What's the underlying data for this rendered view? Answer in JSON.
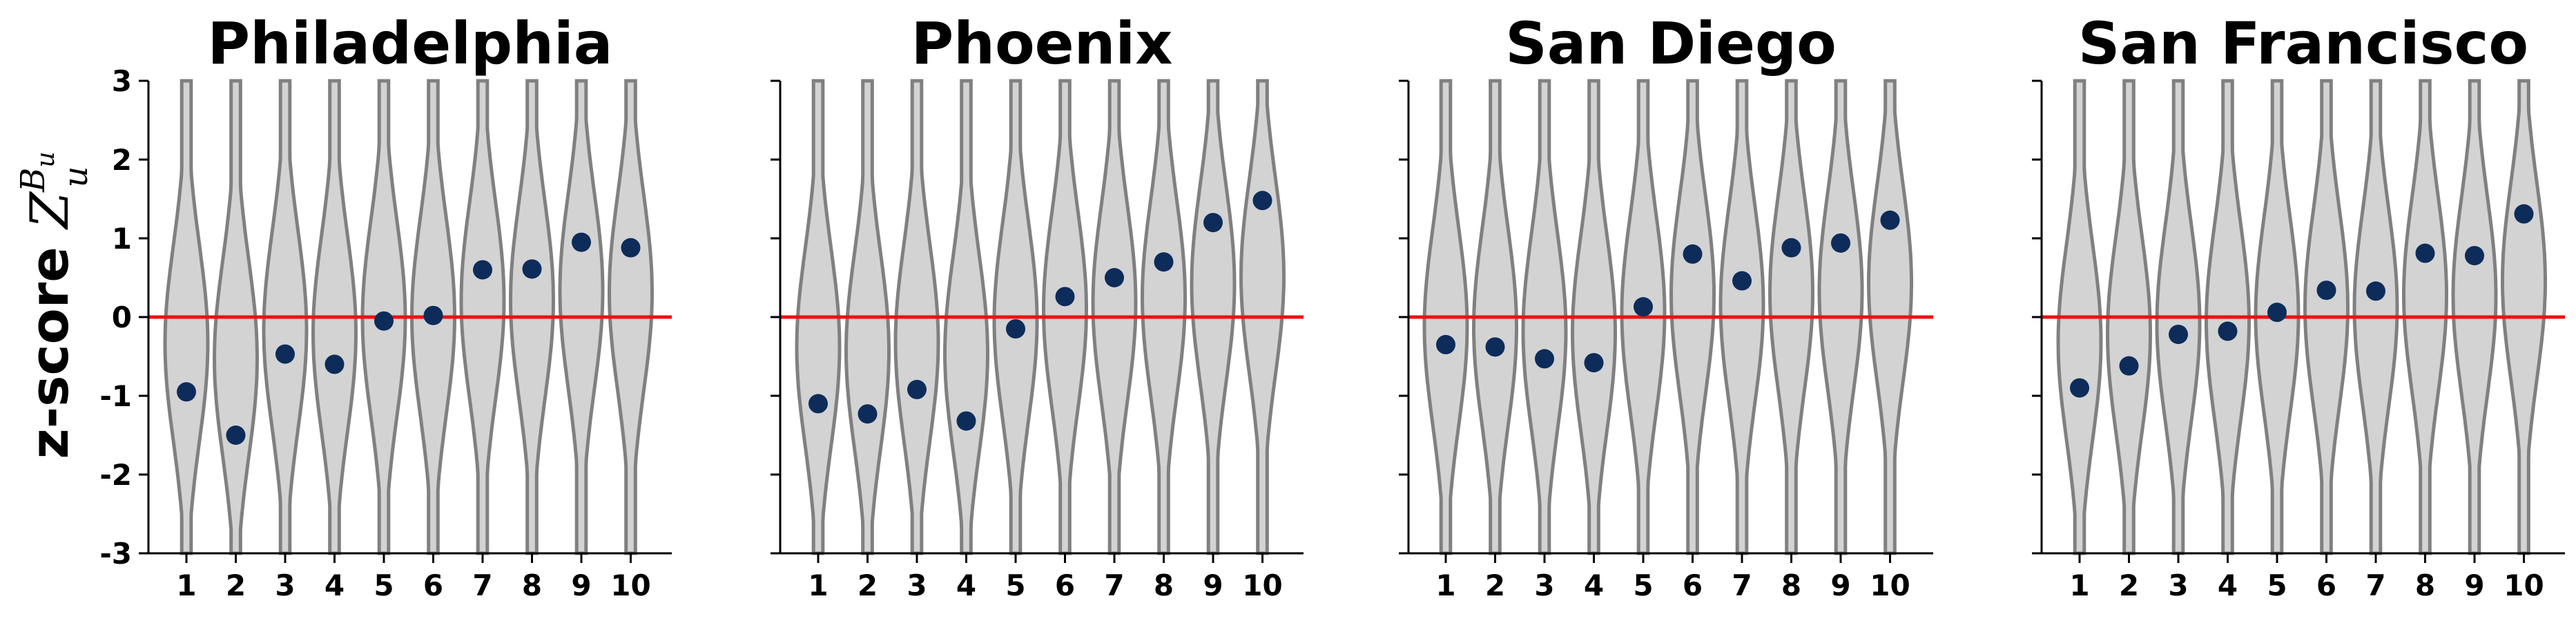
{
  "figure": {
    "ylabel_text": "z-score ",
    "ylabel_symbol": "Z",
    "ylabel_superscript": "B",
    "ylabel_superscript_sub": "u",
    "ylabel_subscript": "u"
  },
  "style": {
    "violin_fill": "#d3d3d3",
    "violin_edge": "#808080",
    "point_color": "#0d2c5a",
    "reference_line_color": "#ee1111",
    "axis_color": "#000000"
  },
  "chart_data": [
    {
      "type": "scatter",
      "title": "Philadelphia",
      "categories": [
        "1",
        "2",
        "3",
        "4",
        "5",
        "6",
        "7",
        "8",
        "9",
        "10"
      ],
      "values": [
        -0.95,
        -1.5,
        -0.47,
        -0.6,
        -0.05,
        0.02,
        0.6,
        0.61,
        0.95,
        0.88
      ],
      "ylim": [
        -3,
        3
      ],
      "yticks": [
        "-3",
        "-2",
        "-1",
        "0",
        "1",
        "2",
        "3"
      ],
      "reference_line": 0,
      "show_ytick_labels": true
    },
    {
      "type": "scatter",
      "title": "Phoenix",
      "categories": [
        "1",
        "2",
        "3",
        "4",
        "5",
        "6",
        "7",
        "8",
        "9",
        "10"
      ],
      "values": [
        -1.1,
        -1.23,
        -0.92,
        -1.32,
        -0.15,
        0.26,
        0.5,
        0.7,
        1.2,
        1.48
      ],
      "ylim": [
        -3,
        3
      ],
      "yticks": [
        "-3",
        "-2",
        "-1",
        "0",
        "1",
        "2",
        "3"
      ],
      "reference_line": 0,
      "show_ytick_labels": false
    },
    {
      "type": "scatter",
      "title": "San Diego",
      "categories": [
        "1",
        "2",
        "3",
        "4",
        "5",
        "6",
        "7",
        "8",
        "9",
        "10"
      ],
      "values": [
        -0.35,
        -0.38,
        -0.53,
        -0.58,
        0.13,
        0.8,
        0.46,
        0.88,
        0.94,
        1.23
      ],
      "ylim": [
        -3,
        3
      ],
      "yticks": [
        "-3",
        "-2",
        "-1",
        "0",
        "1",
        "2",
        "3"
      ],
      "reference_line": 0,
      "show_ytick_labels": false
    },
    {
      "type": "scatter",
      "title": "San Francisco",
      "categories": [
        "1",
        "2",
        "3",
        "4",
        "5",
        "6",
        "7",
        "8",
        "9",
        "10"
      ],
      "values": [
        -0.9,
        -0.62,
        -0.22,
        -0.18,
        0.06,
        0.34,
        0.33,
        0.81,
        0.78,
        1.31
      ],
      "ylim": [
        -3,
        3
      ],
      "yticks": [
        "-3",
        "-2",
        "-1",
        "0",
        "1",
        "2",
        "3"
      ],
      "reference_line": 0,
      "show_ytick_labels": false
    }
  ]
}
